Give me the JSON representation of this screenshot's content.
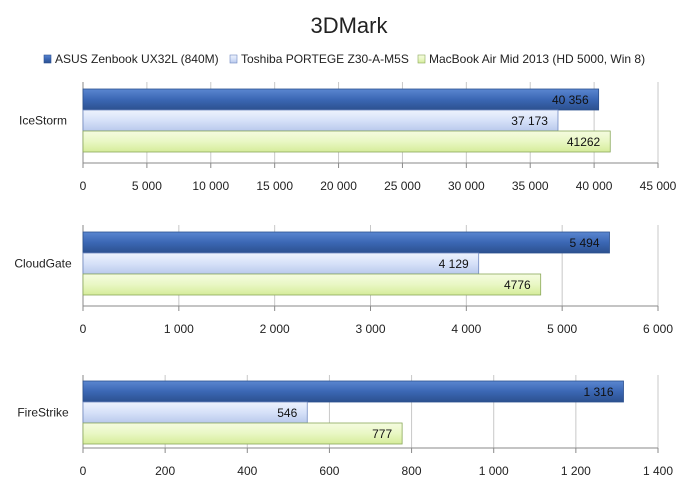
{
  "title": "3DMark",
  "legend": [
    {
      "label": "ASUS Zenbook UX32L (840M)",
      "color": "#3b67b4"
    },
    {
      "label": "Toshiba PORTEGE Z30-A-M5S",
      "color": "#d6e1f8"
    },
    {
      "label": "MacBook Air Mid 2013 (HD 5000, Win 8)",
      "color": "#e9f7c4"
    }
  ],
  "chart_data": [
    {
      "type": "bar",
      "orientation": "horizontal",
      "category": "IceStorm",
      "series": [
        {
          "name": "ASUS Zenbook UX32L (840M)",
          "value": 40356,
          "label": "40 356"
        },
        {
          "name": "Toshiba PORTEGE Z30-A-M5S",
          "value": 37173,
          "label": "37 173"
        },
        {
          "name": "MacBook Air Mid 2013 (HD 5000, Win 8)",
          "value": 41262,
          "label": "41262"
        }
      ],
      "xlim": [
        0,
        45000
      ],
      "ticks": [
        0,
        5000,
        10000,
        15000,
        20000,
        25000,
        30000,
        35000,
        40000,
        45000
      ],
      "tick_labels": [
        "0",
        "5 000",
        "10 000",
        "15 000",
        "20 000",
        "25 000",
        "30 000",
        "35 000",
        "40 000",
        "45 000"
      ],
      "grid": true
    },
    {
      "type": "bar",
      "orientation": "horizontal",
      "category": "CloudGate",
      "series": [
        {
          "name": "ASUS Zenbook UX32L (840M)",
          "value": 5494,
          "label": "5 494"
        },
        {
          "name": "Toshiba PORTEGE Z30-A-M5S",
          "value": 4129,
          "label": "4 129"
        },
        {
          "name": "MacBook Air Mid 2013 (HD 5000, Win 8)",
          "value": 4776,
          "label": "4776"
        }
      ],
      "xlim": [
        0,
        6000
      ],
      "ticks": [
        0,
        1000,
        2000,
        3000,
        4000,
        5000,
        6000
      ],
      "tick_labels": [
        "0",
        "1 000",
        "2 000",
        "3 000",
        "4 000",
        "5 000",
        "6 000"
      ],
      "grid": true
    },
    {
      "type": "bar",
      "orientation": "horizontal",
      "category": "FireStrike",
      "series": [
        {
          "name": "ASUS Zenbook UX32L (840M)",
          "value": 1316,
          "label": "1 316"
        },
        {
          "name": "Toshiba PORTEGE Z30-A-M5S",
          "value": 546,
          "label": "546"
        },
        {
          "name": "MacBook Air Mid 2013 (HD 5000, Win 8)",
          "value": 777,
          "label": "777"
        }
      ],
      "xlim": [
        0,
        1400
      ],
      "ticks": [
        0,
        200,
        400,
        600,
        800,
        1000,
        1200,
        1400
      ],
      "tick_labels": [
        "0",
        "200",
        "400",
        "600",
        "800",
        "1 000",
        "1 200",
        "1 400"
      ],
      "grid": true
    }
  ]
}
